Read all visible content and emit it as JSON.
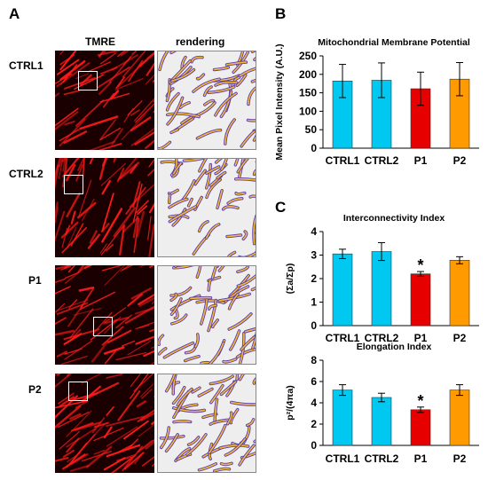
{
  "panel_a": {
    "letter": "A",
    "col_tmre": "TMRE",
    "col_rendering": "rendering",
    "rows": [
      "CTRL1",
      "CTRL2",
      "P1",
      "P2"
    ]
  },
  "panel_b": {
    "letter": "B"
  },
  "panel_c": {
    "letter": "C"
  },
  "colors": {
    "CTRL1": "#00c8f0",
    "CTRL2": "#00c8f0",
    "P1": "#e60000",
    "P2": "#ff9a00",
    "tmre_bg": "#1a0000",
    "tmre_fg": "#ff1a1a",
    "render_bg": "#eeeeee",
    "render_stroke": "#5a3fa8",
    "render_fill": "#f4b740"
  },
  "chart_data": [
    {
      "type": "bar",
      "title": "Mitochondrial Membrane Potential",
      "ylabel": "Mean Pixel Intensity (A.U.)",
      "xlabel": "",
      "categories": [
        "CTRL1",
        "CTRL2",
        "P1",
        "P2"
      ],
      "values": [
        182,
        184,
        161,
        187
      ],
      "errors": [
        45,
        47,
        45,
        45
      ],
      "ylim": [
        0,
        250
      ],
      "yticks": [
        "0",
        "50",
        "100",
        "150",
        "200",
        "250"
      ],
      "significance": [
        "",
        "",
        "",
        ""
      ]
    },
    {
      "type": "bar",
      "title": "Interconnectivity Index",
      "ylabel": "(Σa/Σp)",
      "xlabel": "",
      "categories": [
        "CTRL1",
        "CTRL2",
        "P1",
        "P2"
      ],
      "values": [
        3.05,
        3.15,
        2.2,
        2.78
      ],
      "errors": [
        0.2,
        0.38,
        0.1,
        0.15
      ],
      "ylim": [
        0,
        4
      ],
      "yticks": [
        "0",
        "1",
        "2",
        "3",
        "4"
      ],
      "significance": [
        "",
        "",
        "*",
        ""
      ]
    },
    {
      "type": "bar",
      "title": "Elongation Index",
      "ylabel": "p²/(4πa)",
      "xlabel": "",
      "categories": [
        "CTRL1",
        "CTRL2",
        "P1",
        "P2"
      ],
      "values": [
        5.2,
        4.5,
        3.35,
        5.2
      ],
      "errors": [
        0.5,
        0.4,
        0.25,
        0.5
      ],
      "ylim": [
        0,
        8
      ],
      "yticks": [
        "0",
        "2",
        "4",
        "6",
        "8"
      ],
      "significance": [
        "",
        "",
        "*",
        ""
      ]
    }
  ]
}
